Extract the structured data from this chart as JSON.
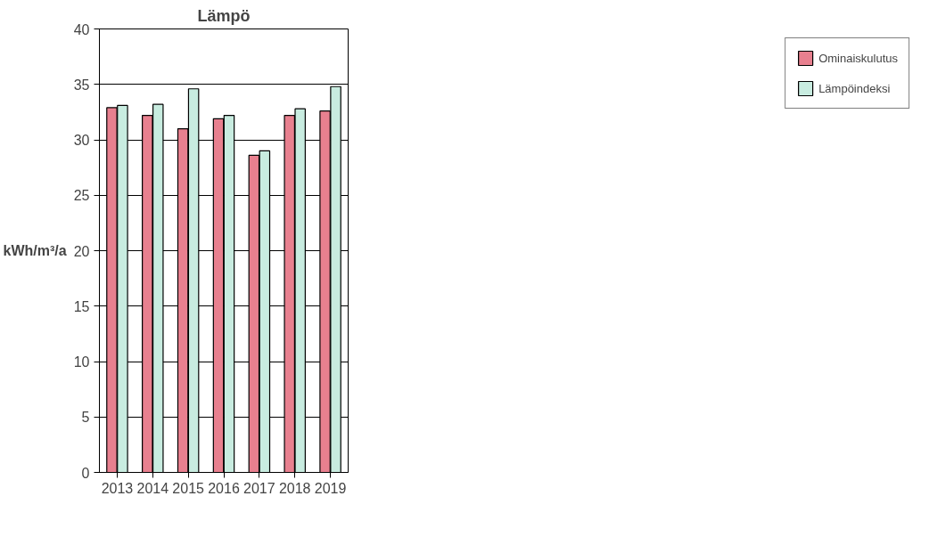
{
  "chart_data": {
    "type": "bar",
    "title": "Lämpö",
    "ylabel": "kWh/m³/a",
    "categories": [
      "2013",
      "2014",
      "2015",
      "2016",
      "2017",
      "2018",
      "2019"
    ],
    "series": [
      {
        "name": "Ominaiskulutus",
        "color": "#e8808f",
        "values": [
          32.9,
          32.2,
          31.0,
          31.9,
          28.6,
          32.2,
          32.6
        ]
      },
      {
        "name": "Lämpöindeksi",
        "color": "#c8ece0",
        "values": [
          33.1,
          33.2,
          34.6,
          32.2,
          29.0,
          32.8,
          34.8
        ]
      }
    ],
    "ylim": [
      0,
      40
    ],
    "yticks": [
      0,
      5,
      10,
      15,
      20,
      25,
      30,
      35,
      40
    ],
    "grid": "y",
    "legend": "right"
  }
}
